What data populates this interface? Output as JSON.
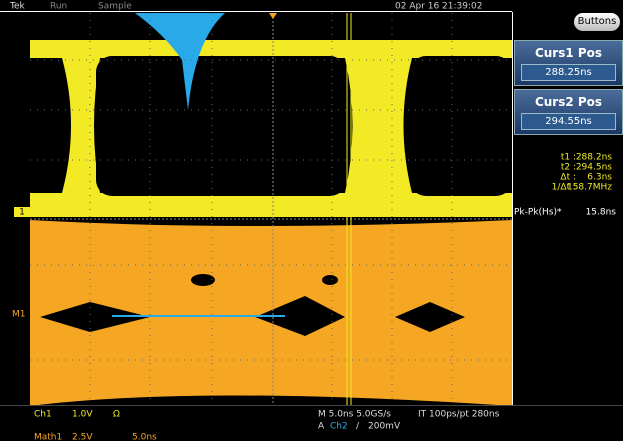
{
  "status_bar": {
    "brand": "Tek",
    "state": "Run",
    "mode": "Sample",
    "datetime": "02 Apr 16 21:39:02"
  },
  "buttons": "Buttons",
  "cursors": [
    {
      "label": "Curs1 Pos",
      "value": "288.25ns"
    },
    {
      "label": "Curs2 Pos",
      "value": "294.55ns"
    }
  ],
  "readouts": [
    {
      "label": "t1 :",
      "value": "288.2ns"
    },
    {
      "label": "t2 :",
      "value": "294.5ns"
    },
    {
      "label": "Δt :",
      "value": "6.3ns"
    },
    {
      "label": "1/Δt :",
      "value": "158.7MHz"
    }
  ],
  "measurement": {
    "label": "Pk-Pk(Hs)*",
    "value": "15.8ns"
  },
  "markers": {
    "ch1": "1",
    "math1": "M1"
  },
  "footer": {
    "ch1": "Ch1",
    "ch1_scale": "1.0V",
    "ohm": "Ω",
    "timebase": "M 5.0ns 5.0GS/s",
    "interp": "IT 100ps/pt 280ns",
    "trigger": "A",
    "trigger_source": "Ch2",
    "trigger_slope": "/",
    "trigger_level": "200mV",
    "math1": "Math1",
    "math1_scale": "2.5V",
    "math1_time": "5.0ns"
  }
}
